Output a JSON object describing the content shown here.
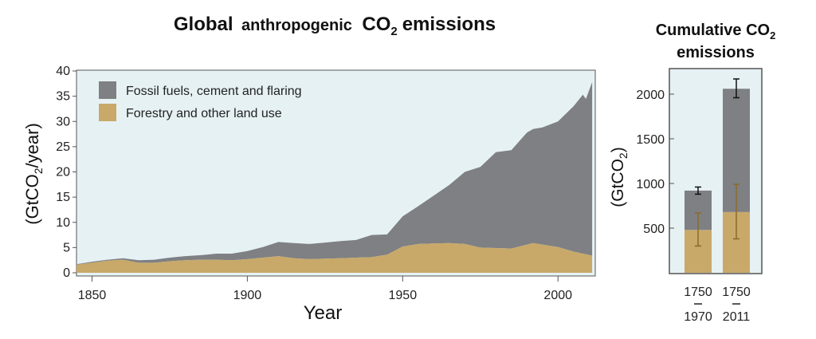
{
  "colors": {
    "fossil": "#7e8083",
    "forestry": "#c8a96a",
    "plot_bg": "#e6f1f4",
    "axis": "#555555",
    "error_fossil": "#111111",
    "error_forestry": "#8a6a2a"
  },
  "left": {
    "title_main": "Global",
    "title_mid": "anthropogenic",
    "title_co": "CO",
    "title_sub": "2",
    "title_end": "emissions"
  },
  "right": {
    "title_line1": "Cumulative CO",
    "title_sub": "2",
    "title_line2": "emissions"
  },
  "chart_data": [
    {
      "type": "area",
      "title": "Global anthropogenic CO2 emissions",
      "xlabel": "Year",
      "ylabel": "(GtCO2/year)",
      "ylabel_parts": [
        "(GtCO",
        "2",
        "/year)"
      ],
      "xlim": [
        1845,
        2012
      ],
      "ylim": [
        0,
        40
      ],
      "xticks": [
        1850,
        1900,
        1950,
        2000
      ],
      "yticks": [
        0,
        5,
        10,
        15,
        20,
        25,
        30,
        35,
        40
      ],
      "legend": {
        "placement": "top-left",
        "entries": [
          "Fossil fuels, cement and flaring",
          "Forestry and other land use"
        ]
      },
      "stacked": true,
      "series": [
        {
          "name": "Forestry and other land use",
          "color_key": "forestry",
          "points": [
            [
              1845,
              1.6
            ],
            [
              1850,
              2.0
            ],
            [
              1855,
              2.4
            ],
            [
              1860,
              2.6
            ],
            [
              1865,
              2.0
            ],
            [
              1870,
              2.0
            ],
            [
              1875,
              2.3
            ],
            [
              1880,
              2.5
            ],
            [
              1885,
              2.6
            ],
            [
              1890,
              2.6
            ],
            [
              1895,
              2.5
            ],
            [
              1900,
              2.7
            ],
            [
              1905,
              3.0
            ],
            [
              1910,
              3.3
            ],
            [
              1915,
              2.9
            ],
            [
              1920,
              2.7
            ],
            [
              1925,
              2.8
            ],
            [
              1930,
              2.9
            ],
            [
              1935,
              3.0
            ],
            [
              1940,
              3.1
            ],
            [
              1945,
              3.6
            ],
            [
              1950,
              5.2
            ],
            [
              1955,
              5.7
            ],
            [
              1960,
              5.8
            ],
            [
              1965,
              5.9
            ],
            [
              1970,
              5.7
            ],
            [
              1975,
              5.0
            ],
            [
              1980,
              4.9
            ],
            [
              1985,
              4.8
            ],
            [
              1990,
              5.6
            ],
            [
              1992,
              5.9
            ],
            [
              1995,
              5.6
            ],
            [
              2000,
              5.1
            ],
            [
              2005,
              4.2
            ],
            [
              2011,
              3.4
            ]
          ]
        },
        {
          "name": "Fossil fuels, cement and flaring",
          "color_key": "fossil",
          "points": [
            [
              1845,
              0.1
            ],
            [
              1850,
              0.2
            ],
            [
              1855,
              0.2
            ],
            [
              1860,
              0.3
            ],
            [
              1865,
              0.5
            ],
            [
              1870,
              0.6
            ],
            [
              1875,
              0.7
            ],
            [
              1880,
              0.8
            ],
            [
              1885,
              0.9
            ],
            [
              1890,
              1.2
            ],
            [
              1895,
              1.3
            ],
            [
              1900,
              1.6
            ],
            [
              1905,
              2.1
            ],
            [
              1910,
              2.8
            ],
            [
              1915,
              3.0
            ],
            [
              1920,
              3.0
            ],
            [
              1925,
              3.2
            ],
            [
              1930,
              3.4
            ],
            [
              1935,
              3.5
            ],
            [
              1940,
              4.4
            ],
            [
              1945,
              4.0
            ],
            [
              1950,
              6.0
            ],
            [
              1955,
              7.5
            ],
            [
              1960,
              9.5
            ],
            [
              1965,
              11.5
            ],
            [
              1970,
              14.3
            ],
            [
              1975,
              16.0
            ],
            [
              1980,
              19.0
            ],
            [
              1985,
              19.5
            ],
            [
              1990,
              22.2
            ],
            [
              1995,
              23.2
            ],
            [
              2000,
              24.9
            ],
            [
              2005,
              28.8
            ],
            [
              2008,
              31.5
            ],
            [
              2009,
              30.8
            ],
            [
              2011,
              34.4
            ]
          ]
        }
      ]
    },
    {
      "type": "bar",
      "title": "Cumulative CO2 emissions",
      "ylabel": "(GtCO2)",
      "ylabel_parts": [
        "(GtCO",
        "2",
        ")"
      ],
      "ylim": [
        0,
        2300
      ],
      "yticks": [
        500,
        1000,
        1500,
        2000
      ],
      "categories": [
        [
          "1750",
          "1970"
        ],
        [
          "1750",
          "2011"
        ]
      ],
      "stacked": true,
      "series": [
        {
          "name": "Forestry and other land use",
          "color_key": "forestry",
          "values": [
            480,
            680
          ],
          "error_low": [
            300,
            380
          ],
          "error_high": [
            670,
            990
          ]
        },
        {
          "name": "Fossil fuels, cement and flaring",
          "color_key": "fossil",
          "values": [
            440,
            1380
          ],
          "total_error_low": [
            880,
            1960
          ],
          "total_error_high": [
            960,
            2170
          ]
        }
      ]
    }
  ]
}
